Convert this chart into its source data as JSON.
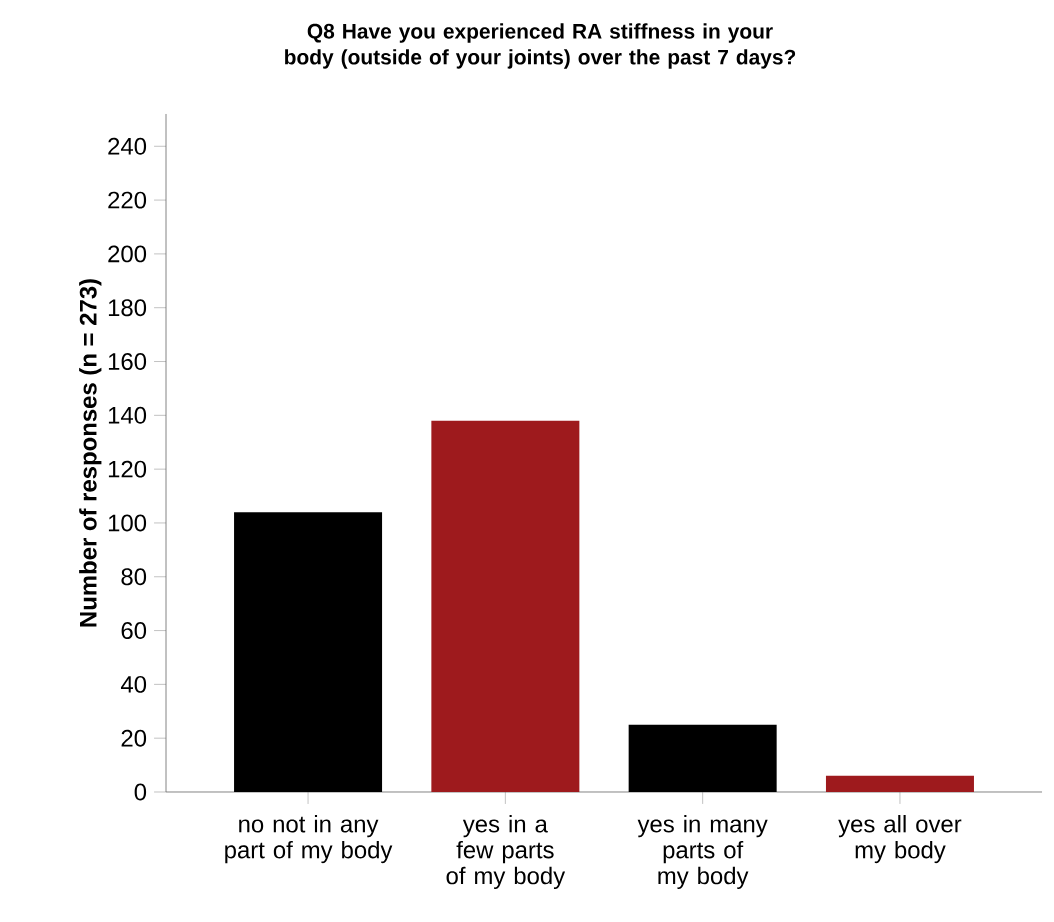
{
  "chart_data": {
    "type": "bar",
    "title": "Q8 Have you experienced RA stiffness in your body (outside of your joints) over the past 7 days?",
    "ylabel": "Number of responses (n = 273)",
    "categories": [
      "no not in any part of my body",
      "yes in a few parts of my body",
      "yes in many parts of my body",
      "yes all over my body"
    ],
    "values": [
      104,
      138,
      25,
      6
    ],
    "colors": [
      "#000000",
      "#9e1a1d",
      "#000000",
      "#9e1a1d"
    ],
    "ylim": [
      0,
      252
    ],
    "yticks": [
      0,
      20,
      40,
      60,
      80,
      100,
      120,
      140,
      160,
      180,
      200,
      220,
      240
    ]
  }
}
